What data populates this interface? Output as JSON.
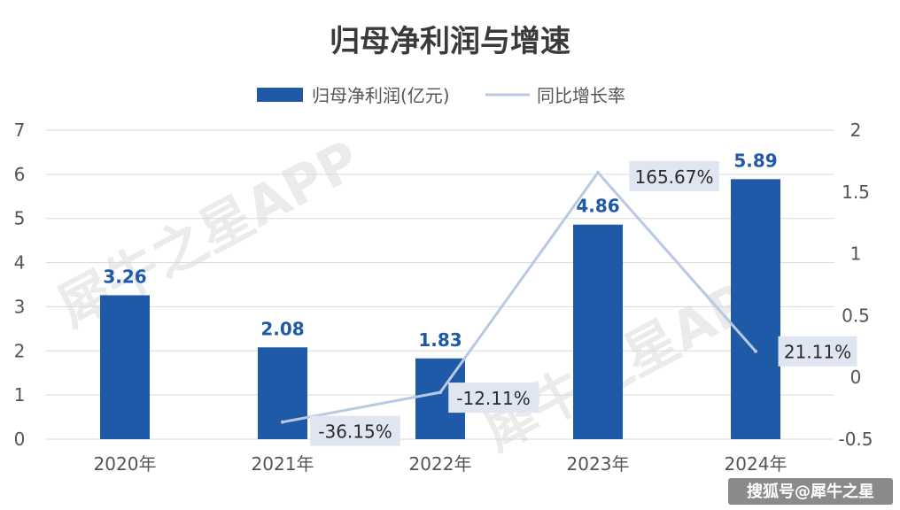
{
  "chart_data": {
    "type": "bar",
    "title": "归母净利润与增速",
    "categories": [
      "2020年",
      "2021年",
      "2022年",
      "2023年",
      "2024年"
    ],
    "series": [
      {
        "name": "归母净利润(亿元)",
        "type": "bar",
        "axis": "left",
        "values": [
          3.26,
          2.08,
          1.83,
          4.86,
          5.89
        ],
        "labels": [
          "3.26",
          "2.08",
          "1.83",
          "4.86",
          "5.89"
        ],
        "color": "#1f5aa8"
      },
      {
        "name": "同比增长率",
        "type": "line",
        "axis": "right",
        "values": [
          null,
          -0.3615,
          -0.1211,
          1.6567,
          0.2111
        ],
        "labels": [
          "",
          "-36.15%",
          "-12.11%",
          "165.67%",
          "21.11%"
        ],
        "color": "#b9c9e3"
      }
    ],
    "y_left": {
      "min": 0,
      "max": 7,
      "ticks": [
        "0",
        "1",
        "2",
        "3",
        "4",
        "5",
        "6",
        "7"
      ]
    },
    "y_right": {
      "min": -0.5,
      "max": 2,
      "ticks": [
        "-0.5",
        "0",
        "0.5",
        "1",
        "1.5",
        "2"
      ]
    },
    "grid": true,
    "legend_position": "top"
  },
  "watermark": "犀牛之星APP",
  "credit": "搜狐号@犀牛之星"
}
